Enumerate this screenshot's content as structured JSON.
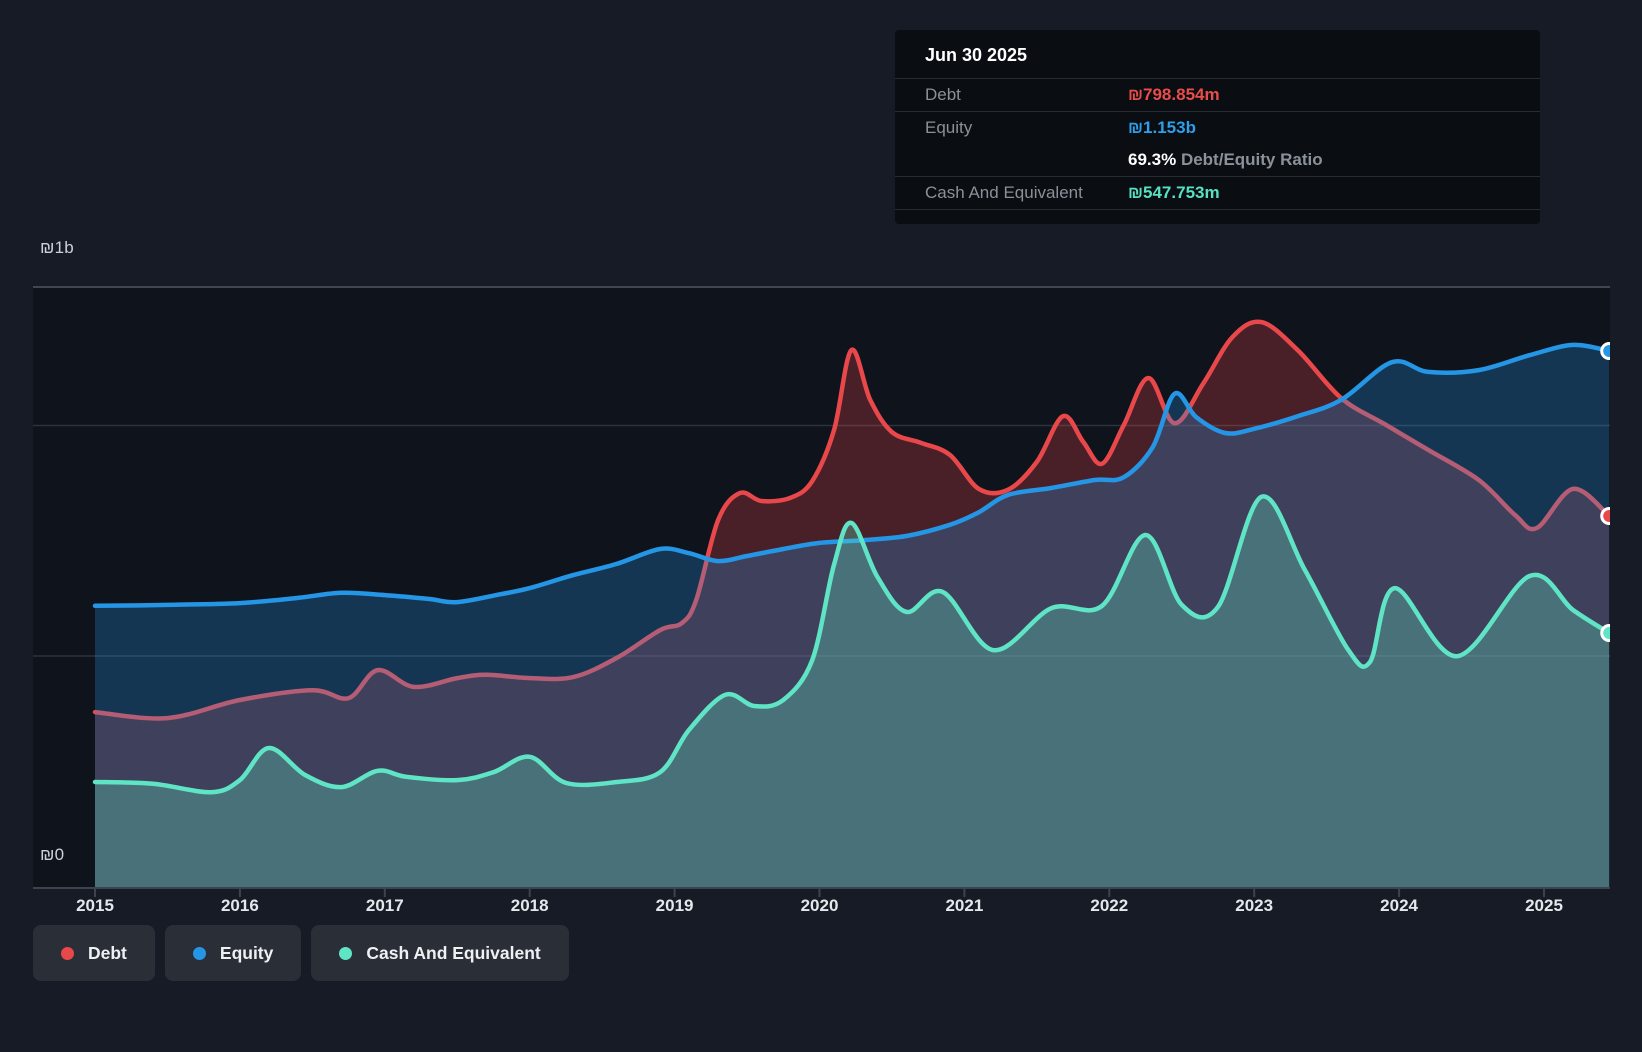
{
  "y_axis": {
    "top_label": "₪1b",
    "bottom_label": "₪0"
  },
  "x_axis": {
    "years": [
      "2015",
      "2016",
      "2017",
      "2018",
      "2019",
      "2020",
      "2021",
      "2022",
      "2023",
      "2024",
      "2025"
    ]
  },
  "tooltip": {
    "date": "Jun 30 2025",
    "rows": [
      {
        "label": "Debt",
        "value": "₪798.854m",
        "color": "#ea4d49"
      },
      {
        "label": "Equity",
        "value": "₪1.153b",
        "color": "#2e9fe8"
      },
      {
        "label": "Cash And Equivalent",
        "value": "₪547.753m",
        "color": "#57e1c3"
      }
    ],
    "ratio_value": "69.3%",
    "ratio_label": "Debt/Equity Ratio"
  },
  "legend": [
    {
      "label": "Debt",
      "color": "#e9484b"
    },
    {
      "label": "Equity",
      "color": "#2496e5"
    },
    {
      "label": "Cash And Equivalent",
      "color": "#5fe4c5"
    }
  ],
  "colors": {
    "page_bg": "#161b25",
    "plot_bg": "#0e131c",
    "grid_faint": "#2d333d",
    "plot_top_border": "#474d57",
    "axis": "#3e444e"
  },
  "chart_data": {
    "type": "area",
    "title": "Debt to Equity History (₪, millions)",
    "x_range": [
      2015,
      2025.45
    ],
    "y_range": [
      0,
      1290
    ],
    "unit": "₪m",
    "legend_position": "bottom-left",
    "grid": "horizontal-faint",
    "series": [
      {
        "name": "Debt",
        "color": "#e9484b",
        "fill_opacity": 0.27,
        "points": [
          [
            2015.0,
            378
          ],
          [
            2015.5,
            365
          ],
          [
            2016.0,
            404
          ],
          [
            2016.5,
            425
          ],
          [
            2016.75,
            408
          ],
          [
            2016.95,
            468
          ],
          [
            2017.2,
            432
          ],
          [
            2017.5,
            451
          ],
          [
            2017.7,
            458
          ],
          [
            2018.0,
            451
          ],
          [
            2018.3,
            453
          ],
          [
            2018.6,
            494
          ],
          [
            2018.9,
            554
          ],
          [
            2019.05,
            569
          ],
          [
            2019.15,
            619
          ],
          [
            2019.3,
            790
          ],
          [
            2019.45,
            848
          ],
          [
            2019.6,
            831
          ],
          [
            2019.8,
            838
          ],
          [
            2019.95,
            874
          ],
          [
            2020.1,
            983
          ],
          [
            2020.22,
            1155
          ],
          [
            2020.35,
            1048
          ],
          [
            2020.5,
            979
          ],
          [
            2020.7,
            956
          ],
          [
            2020.9,
            930
          ],
          [
            2021.1,
            857
          ],
          [
            2021.3,
            855
          ],
          [
            2021.5,
            915
          ],
          [
            2021.68,
            1013
          ],
          [
            2021.82,
            958
          ],
          [
            2021.95,
            911
          ],
          [
            2022.1,
            994
          ],
          [
            2022.27,
            1095
          ],
          [
            2022.45,
            998
          ],
          [
            2022.65,
            1084
          ],
          [
            2022.85,
            1183
          ],
          [
            2023.05,
            1215
          ],
          [
            2023.3,
            1155
          ],
          [
            2023.6,
            1052
          ],
          [
            2023.9,
            996
          ],
          [
            2024.2,
            941
          ],
          [
            2024.55,
            876
          ],
          [
            2024.8,
            801
          ],
          [
            2024.95,
            773
          ],
          [
            2025.2,
            857
          ],
          [
            2025.45,
            798.854
          ]
        ]
      },
      {
        "name": "Equity",
        "color": "#2496e5",
        "fill_opacity": 0.27,
        "points": [
          [
            2015.0,
            606
          ],
          [
            2015.5,
            608
          ],
          [
            2016.0,
            612
          ],
          [
            2016.4,
            623
          ],
          [
            2016.7,
            634
          ],
          [
            2017.0,
            629
          ],
          [
            2017.3,
            621
          ],
          [
            2017.5,
            614
          ],
          [
            2017.8,
            631
          ],
          [
            2018.0,
            644
          ],
          [
            2018.3,
            672
          ],
          [
            2018.6,
            696
          ],
          [
            2018.9,
            728
          ],
          [
            2019.1,
            719
          ],
          [
            2019.3,
            702
          ],
          [
            2019.5,
            713
          ],
          [
            2019.75,
            728
          ],
          [
            2020.0,
            741
          ],
          [
            2020.3,
            747
          ],
          [
            2020.6,
            756
          ],
          [
            2020.9,
            780
          ],
          [
            2021.1,
            807
          ],
          [
            2021.3,
            844
          ],
          [
            2021.6,
            859
          ],
          [
            2021.9,
            876
          ],
          [
            2022.1,
            882
          ],
          [
            2022.3,
            947
          ],
          [
            2022.45,
            1061
          ],
          [
            2022.6,
            1011
          ],
          [
            2022.8,
            977
          ],
          [
            2023.0,
            986
          ],
          [
            2023.3,
            1013
          ],
          [
            2023.6,
            1048
          ],
          [
            2023.95,
            1129
          ],
          [
            2024.2,
            1108
          ],
          [
            2024.55,
            1112
          ],
          [
            2024.9,
            1144
          ],
          [
            2025.2,
            1166
          ],
          [
            2025.45,
            1153
          ]
        ]
      },
      {
        "name": "Cash And Equivalent",
        "color": "#5fe4c5",
        "fill_opacity": 0.3,
        "points": [
          [
            2015.0,
            228
          ],
          [
            2015.4,
            224
          ],
          [
            2015.8,
            206
          ],
          [
            2016.0,
            232
          ],
          [
            2016.2,
            301
          ],
          [
            2016.45,
            243
          ],
          [
            2016.7,
            217
          ],
          [
            2016.95,
            252
          ],
          [
            2017.15,
            239
          ],
          [
            2017.5,
            232
          ],
          [
            2017.75,
            249
          ],
          [
            2018.0,
            282
          ],
          [
            2018.25,
            226
          ],
          [
            2018.6,
            228
          ],
          [
            2018.9,
            249
          ],
          [
            2019.1,
            340
          ],
          [
            2019.35,
            415
          ],
          [
            2019.55,
            391
          ],
          [
            2019.75,
            404
          ],
          [
            2019.95,
            490
          ],
          [
            2020.1,
            694
          ],
          [
            2020.22,
            784
          ],
          [
            2020.4,
            668
          ],
          [
            2020.6,
            593
          ],
          [
            2020.85,
            636
          ],
          [
            2021.2,
            511
          ],
          [
            2021.6,
            601
          ],
          [
            2021.95,
            606
          ],
          [
            2022.25,
            758
          ],
          [
            2022.5,
            608
          ],
          [
            2022.75,
            604
          ],
          [
            2023.05,
            840
          ],
          [
            2023.35,
            683
          ],
          [
            2023.65,
            511
          ],
          [
            2023.8,
            486
          ],
          [
            2023.97,
            644
          ],
          [
            2024.4,
            498
          ],
          [
            2024.9,
            670
          ],
          [
            2025.2,
            597
          ],
          [
            2025.45,
            547.753
          ]
        ]
      }
    ]
  }
}
